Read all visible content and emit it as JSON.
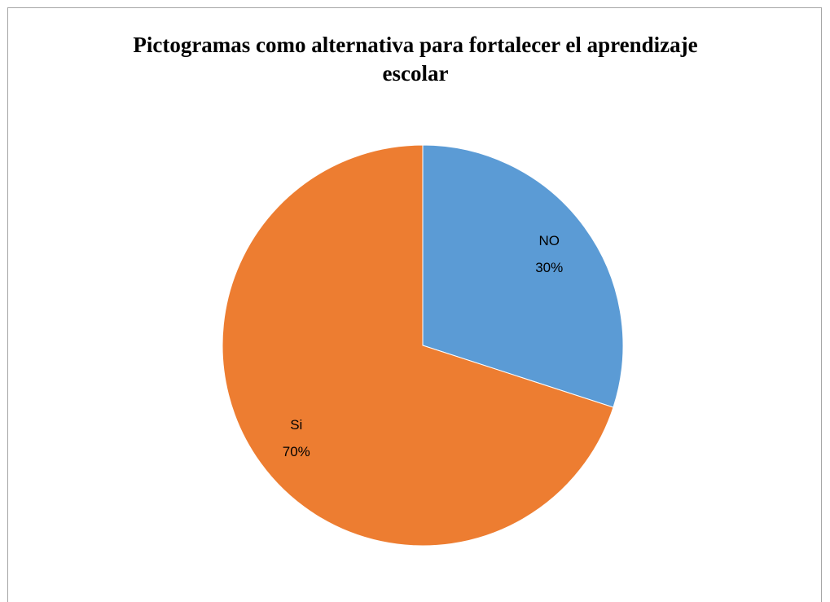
{
  "chart_data": {
    "type": "pie",
    "title": "Pictogramas como alternativa para fortalecer el aprendizaje escolar",
    "categories": [
      "NO",
      "Si"
    ],
    "values": [
      30,
      70
    ],
    "value_labels": [
      "30%",
      "70%"
    ],
    "colors": [
      "#5b9bd5",
      "#ed7d31"
    ]
  }
}
